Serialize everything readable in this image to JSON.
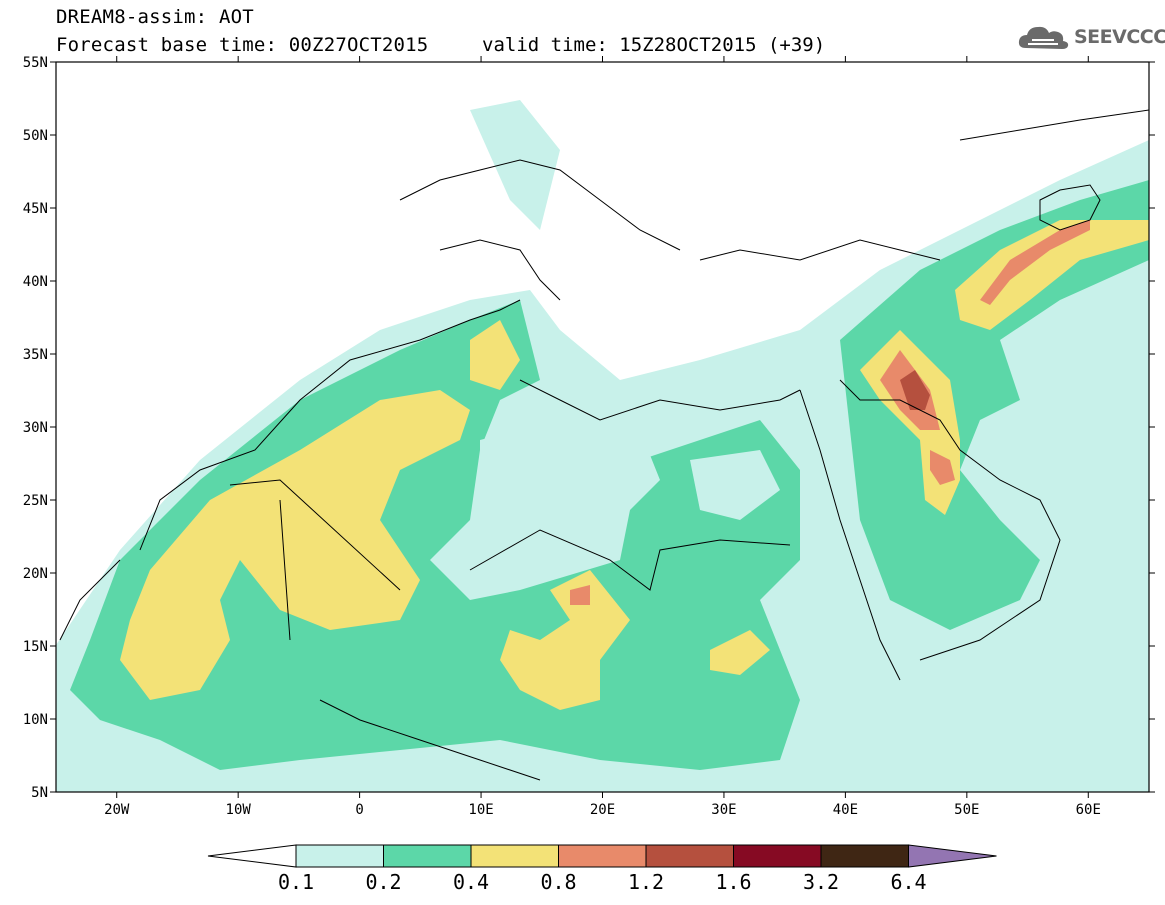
{
  "header": {
    "title": "DREAM8-assim: AOT",
    "base_time": "Forecast base time: 00Z27OCT2015",
    "valid_time": "valid time: 15Z28OCT2015 (+39)"
  },
  "logo": {
    "text": "SEEVCCC",
    "icon": "cloud-icon",
    "color": "#6a6a6a"
  },
  "map": {
    "lat_labels": [
      "55N",
      "50N",
      "45N",
      "40N",
      "35N",
      "30N",
      "25N",
      "20N",
      "15N",
      "10N",
      "5N"
    ],
    "lon_labels": [
      "20W",
      "10W",
      "0",
      "10E",
      "20E",
      "30E",
      "40E",
      "50E",
      "60E"
    ],
    "lon_range": [
      -25,
      65
    ],
    "lat_range": [
      5,
      55
    ]
  },
  "colorbar": {
    "labels": [
      "0.1",
      "0.2",
      "0.4",
      "0.8",
      "1.2",
      "1.6",
      "3.2",
      "6.4"
    ],
    "colors": [
      "#c8f1ea",
      "#5cd7a8",
      "#f3e277",
      "#e88a6a",
      "#b5503e",
      "#860a23",
      "#3f2614",
      "#9375b2"
    ],
    "under_color": "#ffffff"
  }
}
